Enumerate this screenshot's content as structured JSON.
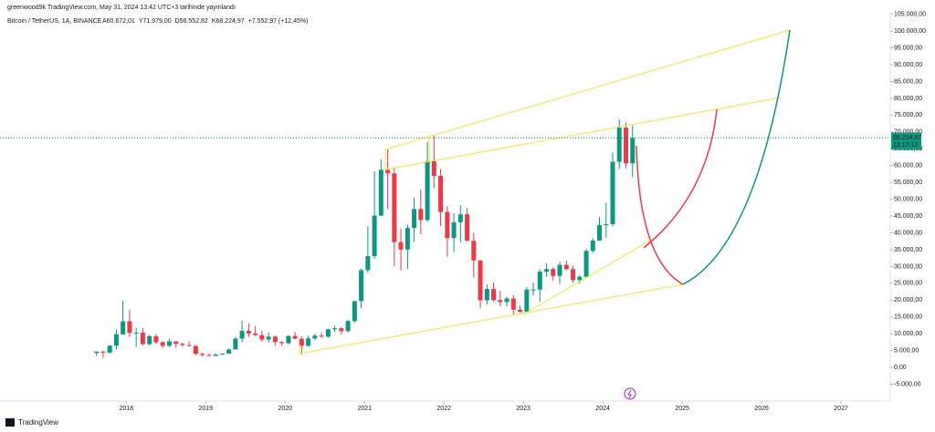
{
  "chart_data": {
    "type": "candlestick",
    "published": "greenwood9k TradingView.com, May 31, 2024 13:42 UTC+3 tarihinde yayınlandı",
    "symbol": "Bitcoin / TetherUS, 1A, BINANCE",
    "ohlc_labels": [
      "A60.672,01",
      "Y71.979,00",
      "D56.552,82",
      "K68.224,97",
      "+7.552,97 (+12,45%)"
    ],
    "price_label": "68.224,97",
    "countdown": "13:17:12",
    "brand": "TradingView",
    "up_color": "#089981",
    "down_color": "#f23645",
    "xlim": [
      2016.41,
      2027.62
    ],
    "xticks": [
      2018,
      2019,
      2020,
      2021,
      2022,
      2023,
      2024,
      2025,
      2026,
      2027
    ],
    "ylim": [
      -10000,
      106000
    ],
    "yticks": [
      {
        "value": -5000,
        "label": "-5.000,00"
      },
      {
        "value": 0,
        "label": "0,00"
      },
      {
        "value": 5000,
        "label": "5.000,00"
      },
      {
        "value": 10000,
        "label": "10.000,00"
      },
      {
        "value": 15000,
        "label": "15.000,00"
      },
      {
        "value": 20000,
        "label": "20.000,00"
      },
      {
        "value": 25000,
        "label": "25.000,00"
      },
      {
        "value": 30000,
        "label": "30.000,00"
      },
      {
        "value": 35000,
        "label": "35.000,00"
      },
      {
        "value": 40000,
        "label": "40.000,00"
      },
      {
        "value": 45000,
        "label": "45.000,00"
      },
      {
        "value": 50000,
        "label": "50.000,00"
      },
      {
        "value": 55000,
        "label": "55.000,00"
      },
      {
        "value": 60000,
        "label": "60.000,00"
      },
      {
        "value": 65000,
        "label": "65.000,00"
      },
      {
        "value": 70000,
        "label": "70.000,00"
      },
      {
        "value": 75000,
        "label": "75.000,00"
      },
      {
        "value": 80000,
        "label": "80.000,00"
      },
      {
        "value": 85000,
        "label": "85.000,00"
      },
      {
        "value": 90000,
        "label": "90.000,00"
      },
      {
        "value": 95000,
        "label": "95.000,00"
      },
      {
        "value": 100000,
        "label": "100.000,00"
      },
      {
        "value": 105000,
        "label": "105.000,00"
      }
    ],
    "x": [
      2017.625,
      2017.708,
      2017.792,
      2017.875,
      2017.958,
      2018.042,
      2018.125,
      2018.208,
      2018.292,
      2018.375,
      2018.458,
      2018.542,
      2018.625,
      2018.708,
      2018.792,
      2018.875,
      2018.958,
      2019.042,
      2019.125,
      2019.208,
      2019.292,
      2019.375,
      2019.458,
      2019.542,
      2019.625,
      2019.708,
      2019.792,
      2019.875,
      2019.958,
      2020.042,
      2020.125,
      2020.208,
      2020.292,
      2020.375,
      2020.458,
      2020.542,
      2020.625,
      2020.708,
      2020.792,
      2020.875,
      2020.958,
      2021.042,
      2021.125,
      2021.208,
      2021.292,
      2021.375,
      2021.458,
      2021.542,
      2021.625,
      2021.708,
      2021.792,
      2021.875,
      2021.958,
      2022.042,
      2022.125,
      2022.208,
      2022.292,
      2022.375,
      2022.458,
      2022.542,
      2022.625,
      2022.708,
      2022.792,
      2022.875,
      2022.958,
      2023.042,
      2023.125,
      2023.208,
      2023.292,
      2023.375,
      2023.458,
      2023.542,
      2023.625,
      2023.708,
      2023.792,
      2023.875,
      2023.958,
      2024.042,
      2024.125,
      2024.208,
      2024.292,
      2024.375
    ],
    "open": [
      4261,
      4689,
      4378,
      6463,
      9838,
      13715,
      10285,
      10325,
      6922,
      9246,
      7494,
      6391,
      7725,
      7011,
      6626,
      6370,
      4041,
      3701,
      3434,
      3814,
      4102,
      5321,
      8555,
      10854,
      10085,
      9588,
      8289,
      9140,
      7540,
      7195,
      9351,
      8523,
      6412,
      8620,
      9448,
      9138,
      11335,
      11649,
      10776,
      13791,
      19695,
      28923,
      33092,
      45134,
      58739,
      57697,
      37254,
      35045,
      41461,
      47100,
      43821,
      61300,
      56950,
      46216,
      38466,
      43160,
      45510,
      37630,
      31801,
      19942,
      23296,
      20048,
      19423,
      20490,
      17165,
      16541,
      23125,
      23141,
      28465,
      29233,
      27210,
      30472,
      29232,
      25941,
      26962,
      34639,
      37724,
      42283,
      42580,
      61130,
      71280,
      60672.01
    ],
    "high": [
      4745,
      4939,
      6470,
      11300,
      19798,
      17176,
      11786,
      11710,
      9759,
      10020,
      7786,
      8507,
      7760,
      7410,
      7680,
      6555,
      4312,
      4140,
      4198,
      4140,
      5600,
      9074,
      13970,
      13147,
      12325,
      10905,
      10370,
      9513,
      7750,
      9578,
      10500,
      9188,
      9460,
      10067,
      10380,
      11444,
      12468,
      12050,
      14100,
      19863,
      29300,
      41950,
      58352,
      61844,
      64854,
      59500,
      41330,
      42448,
      50500,
      52920,
      67000,
      69000,
      59054,
      47990,
      45821,
      48189,
      47444,
      40023,
      31982,
      24668,
      25211,
      22799,
      21085,
      21480,
      18387,
      23960,
      25250,
      29184,
      31000,
      29820,
      31389,
      31804,
      30244,
      27483,
      35198,
      38450,
      44700,
      48969,
      63913,
      73777,
      72797,
      71979
    ],
    "low": [
      3400,
      2817,
      4110,
      5325,
      9722,
      9035,
      6000,
      6600,
      6430,
      7032,
      5755,
      6070,
      5880,
      6100,
      6200,
      3652,
      3156,
      3349,
      3373,
      3670,
      4096,
      5320,
      7444,
      9010,
      9320,
      7710,
      7300,
      6515,
      6435,
      6871,
      8445,
      3782,
      6150,
      8117,
      8833,
      8893,
      10518,
      9825,
      10374,
      13195,
      17572,
      28130,
      32296,
      45000,
      47044,
      30000,
      28805,
      29278,
      37332,
      39600,
      43283,
      53256,
      42000,
      32917,
      34322,
      37155,
      37578,
      26700,
      17622,
      18781,
      19520,
      18125,
      18190,
      15476,
      16256,
      16499,
      21351,
      19549,
      26942,
      25811,
      24800,
      28861,
      25166,
      24901,
      26538,
      34097,
      37600,
      38555,
      41884,
      59005,
      59191,
      56552.82
    ],
    "close": [
      4724,
      4378,
      6463,
      9838,
      13716,
      10285,
      10326,
      6923,
      9246,
      7494,
      6391,
      7725,
      7011,
      6626,
      6371,
      4041,
      3702,
      3434,
      3813,
      4103,
      5320,
      8555,
      10855,
      10085,
      9588,
      8289,
      9140,
      7541,
      7195,
      9352,
      8523,
      6410,
      8621,
      9448,
      9138,
      11335,
      11649,
      10776,
      13791,
      19695,
      28923,
      33092,
      45135,
      58740,
      57694,
      37253,
      35045,
      41461,
      47100,
      43824,
      61300,
      56950,
      46216,
      38466,
      43160,
      45510,
      37630,
      31801,
      19942,
      23293,
      20050,
      19423,
      20490,
      17164,
      16542,
      23125,
      23141,
      28465,
      29233,
      27210,
      30472,
      29232,
      25941,
      26962,
      34639,
      37723,
      42283,
      42580,
      61130,
      71280,
      60672,
      68224.97
    ]
  }
}
